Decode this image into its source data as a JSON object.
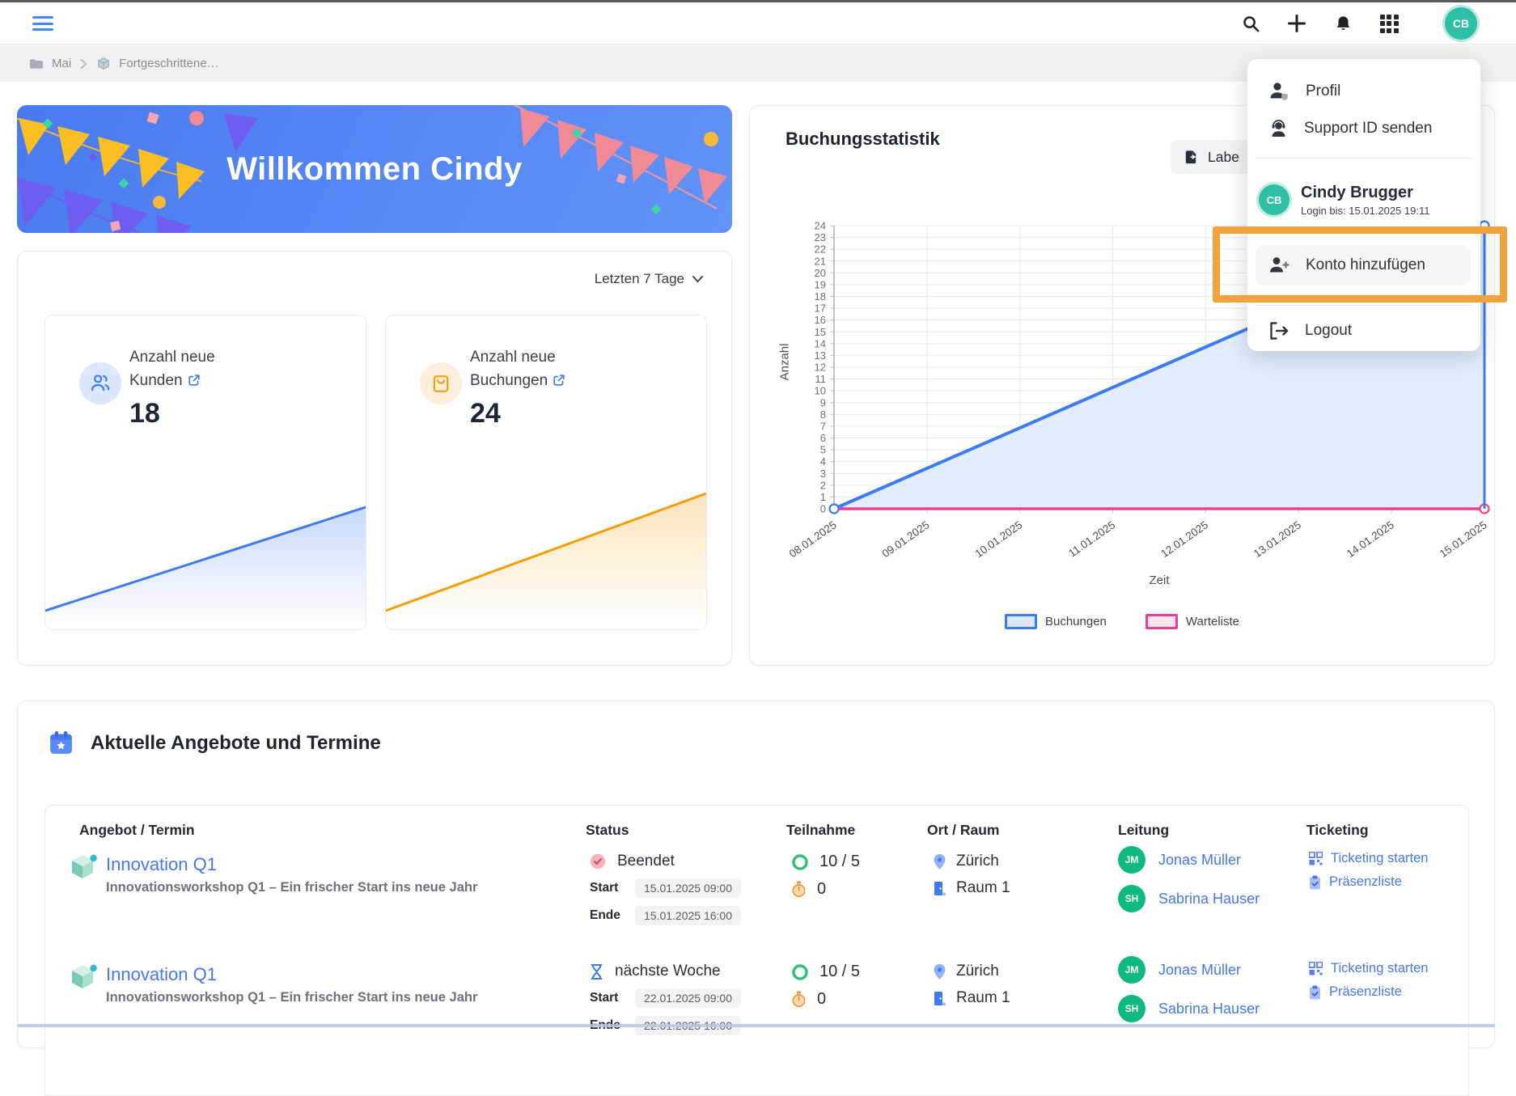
{
  "colors": {
    "primary_blue": "#4678f0",
    "chart_blue": "#3d7bf4",
    "chart_blue_fill": "#dbe8fc",
    "chart_pink": "#e8418f",
    "accent_orange": "#f59e0b",
    "teal_avatar": "#2ebfa5",
    "green_avatar": "#10b981",
    "highlight_box_orange": "#f0a23c"
  },
  "topbar": {
    "icons": [
      "search",
      "add",
      "notifications",
      "apps"
    ],
    "avatar_initials": "CB"
  },
  "breadcrumb": {
    "root": "Mai",
    "current": "Fortgeschrittene…"
  },
  "banner": {
    "title": "Willkommen Cindy"
  },
  "stats": {
    "range_label": "Letzten 7 Tage",
    "cards": [
      {
        "label": "Anzahl neue Kunden",
        "value": "18"
      },
      {
        "label": "Anzahl neue Buchungen",
        "value": "24"
      }
    ]
  },
  "chart_card": {
    "title": "Buchungsstatistik",
    "export_label": "Labe"
  },
  "chart_data": {
    "type": "area",
    "title": "Buchungsstatistik",
    "xlabel": "Zeit",
    "ylabel": "Anzahl",
    "x_ticks": [
      "08.01.2025",
      "09.01.2025",
      "10.01.2025",
      "11.01.2025",
      "12.01.2025",
      "13.01.2025",
      "14.01.2025",
      "15.01.2025"
    ],
    "ylim": [
      0,
      24
    ],
    "y_tick_step": 1,
    "grid": true,
    "legend_position": "bottom",
    "series": [
      {
        "name": "Buchungen",
        "color": "#3d7bf4",
        "fill": "#dbe8fc",
        "points": [
          [
            "08.01.2025",
            0
          ],
          [
            "15.01.2025",
            24
          ]
        ]
      },
      {
        "name": "Warteliste",
        "color": "#e8418f",
        "fill": "#fce4f0",
        "points": [
          [
            "08.01.2025",
            0
          ],
          [
            "15.01.2025",
            0
          ]
        ]
      }
    ]
  },
  "user_menu": {
    "profil_label": "Profil",
    "support_label": "Support ID senden",
    "account": {
      "initials": "CB",
      "name": "Cindy Brugger",
      "meta": "Login bis: 15.01.2025 19:11"
    },
    "add_account_label": "Konto hinzufügen",
    "logout_label": "Logout"
  },
  "offers": {
    "title": "Aktuelle Angebote und Termine",
    "columns": [
      "Angebot / Termin",
      "Status",
      "Teilnahme",
      "Ort / Raum",
      "Leitung",
      "Ticketing"
    ],
    "rows": [
      {
        "name": "Innovation Q1",
        "subtitle": "Innovationsworkshop Q1 – Ein frischer Start ins neue Jahr",
        "status": {
          "label": "Beendet",
          "start_label": "Start",
          "start": "15.01.2025 09:00",
          "end_label": "Ende",
          "end": "15.01.2025 16:00"
        },
        "participation": {
          "count": "10 / 5",
          "waitlist": "0"
        },
        "location": {
          "city": "Zürich",
          "room": "Raum 1"
        },
        "leaders": [
          {
            "initials": "JM",
            "name": "Jonas Müller"
          },
          {
            "initials": "SH",
            "name": "Sabrina Hauser"
          }
        ],
        "ticketing": {
          "start_label": "Ticketing starten",
          "presence_label": "Präsenzliste"
        }
      },
      {
        "name": "Innovation Q1",
        "subtitle": "Innovationsworkshop Q1 – Ein frischer Start ins neue Jahr",
        "status": {
          "label": "nächste Woche",
          "start_label": "Start",
          "start": "22.01.2025 09:00",
          "end_label": "Ende",
          "end": "22.01.2025 16:00"
        },
        "participation": {
          "count": "10 / 5",
          "waitlist": "0"
        },
        "location": {
          "city": "Zürich",
          "room": "Raum 1"
        },
        "leaders": [
          {
            "initials": "JM",
            "name": "Jonas Müller"
          },
          {
            "initials": "SH",
            "name": "Sabrina Hauser"
          }
        ],
        "ticketing": {
          "start_label": "Ticketing starten",
          "presence_label": "Präsenzliste"
        }
      }
    ]
  }
}
